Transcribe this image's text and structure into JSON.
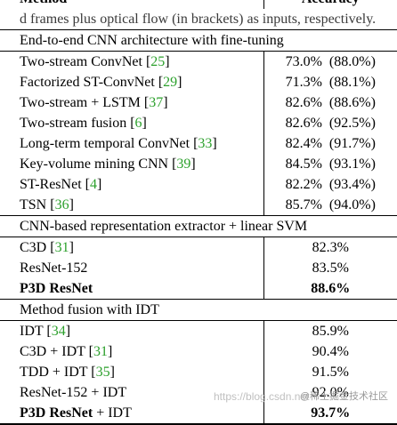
{
  "caption_fragment": "d frames plus optical flow (in brackets) as inputs, respectively.",
  "header": {
    "method": "Method",
    "accuracy": "Accuracy"
  },
  "sections": [
    {
      "title": "End-to-end CNN architecture with fine-tuning",
      "rows": [
        {
          "method": "Two-stream ConvNet",
          "cite": "25",
          "acc": "73.0%",
          "acc_flow": "(88.0%)"
        },
        {
          "method": "Factorized ST-ConvNet",
          "cite": "29",
          "acc": "71.3%",
          "acc_flow": "(88.1%)"
        },
        {
          "method": "Two-stream + LSTM",
          "cite": "37",
          "acc": "82.6%",
          "acc_flow": "(88.6%)"
        },
        {
          "method": "Two-stream fusion",
          "cite": "6",
          "acc": "82.6%",
          "acc_flow": "(92.5%)"
        },
        {
          "method": "Long-term temporal ConvNet",
          "cite": "33",
          "acc": "82.4%",
          "acc_flow": "(91.7%)"
        },
        {
          "method": "Key-volume mining CNN",
          "cite": "39",
          "acc": "84.5%",
          "acc_flow": "(93.1%)"
        },
        {
          "method": "ST-ResNet",
          "cite": "4",
          "acc": "82.2%",
          "acc_flow": "(93.4%)"
        },
        {
          "method": "TSN",
          "cite": "36",
          "acc": "85.7%",
          "acc_flow": "(94.0%)"
        }
      ]
    },
    {
      "title": "CNN-based representation extractor + linear SVM",
      "rows": [
        {
          "method": "C3D",
          "cite": "31",
          "acc": "82.3%"
        },
        {
          "method": "ResNet-152",
          "cite": "",
          "acc": "83.5%"
        },
        {
          "method": "P3D ResNet",
          "cite": "",
          "acc": "88.6%",
          "bold": true
        }
      ]
    },
    {
      "title": "Method fusion with IDT",
      "rows": [
        {
          "method": "IDT",
          "cite": "34",
          "acc": "85.9%"
        },
        {
          "method": "C3D + IDT",
          "cite": "31",
          "acc": "90.4%"
        },
        {
          "method": "TDD + IDT",
          "cite": "35",
          "acc": "91.5%"
        },
        {
          "method": "ResNet-152 + IDT",
          "cite": "",
          "acc": "92.0%"
        },
        {
          "method": "P3D ResNet",
          "method_suffix": " + IDT",
          "cite": "",
          "acc": "93.7%",
          "bold": true
        }
      ]
    }
  ],
  "watermark": "https://blog.csdn.net",
  "watermark_brand": "@稀土掘金技术社区"
}
